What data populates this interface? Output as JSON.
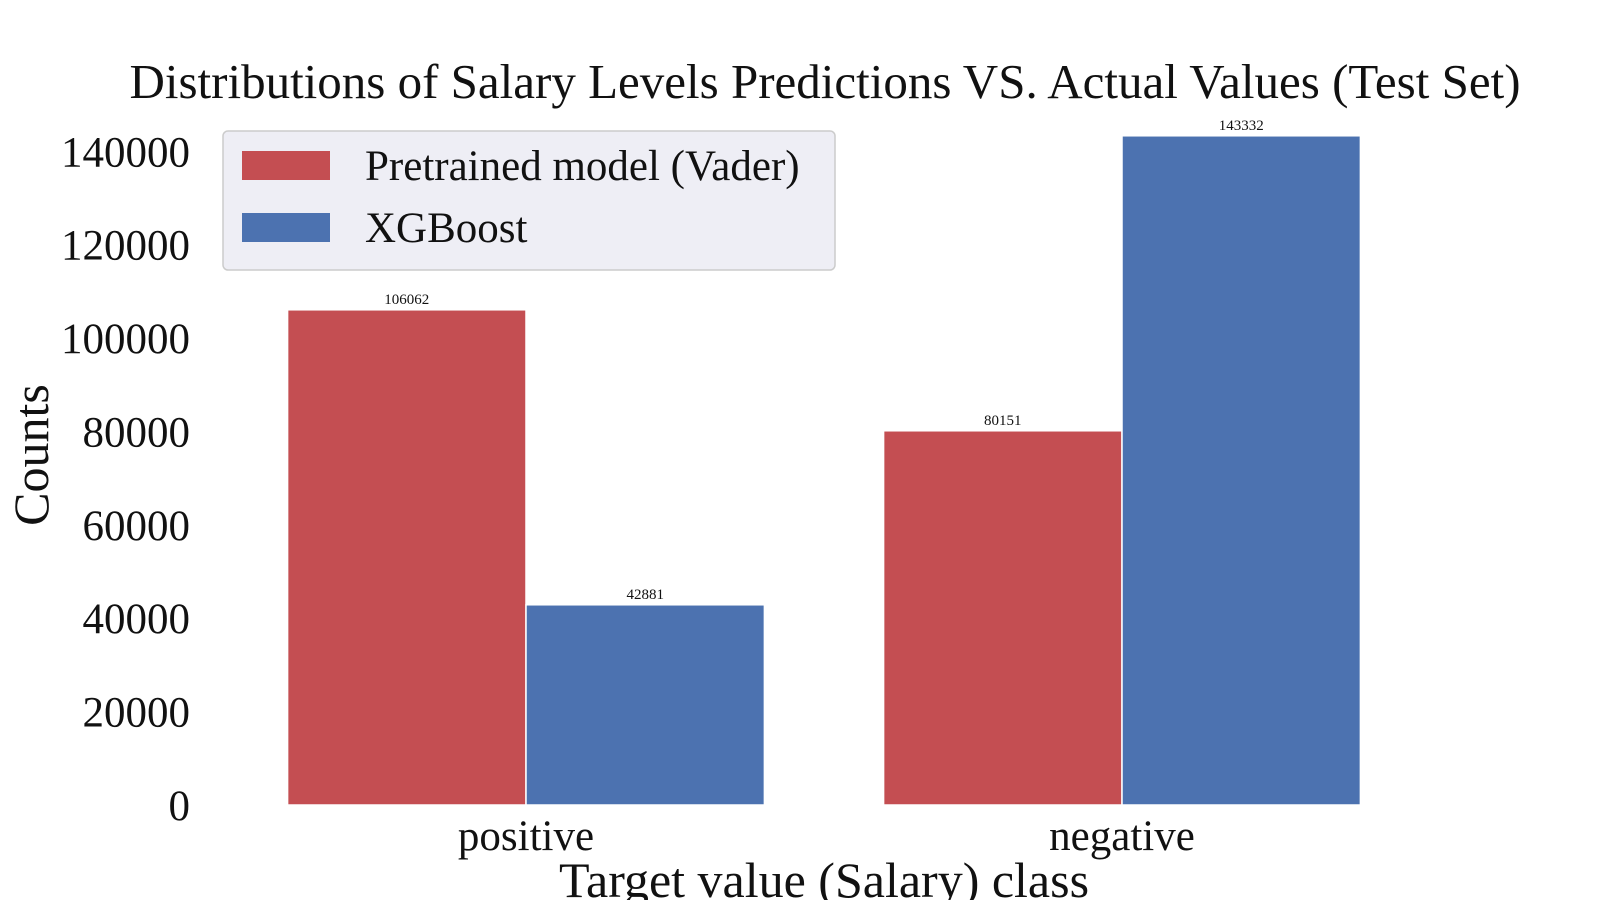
{
  "chart_data": {
    "type": "bar",
    "title": "Distributions of Salary Levels Predictions VS. Actual Values (Test Set)",
    "xlabel": "Target value (Salary) class",
    "ylabel": "Counts",
    "categories": [
      "positive",
      "negative"
    ],
    "series": [
      {
        "name": "Pretrained model (Vader)",
        "color": "#c44e52",
        "values": [
          106062,
          80151
        ]
      },
      {
        "name": "XGBoost",
        "color": "#4c72b0",
        "values": [
          42881,
          143332
        ]
      }
    ],
    "yticks": [
      0,
      20000,
      40000,
      60000,
      80000,
      100000,
      120000,
      140000
    ],
    "ylim": [
      0,
      145000
    ],
    "grid": false,
    "legend_position": "top-left"
  }
}
